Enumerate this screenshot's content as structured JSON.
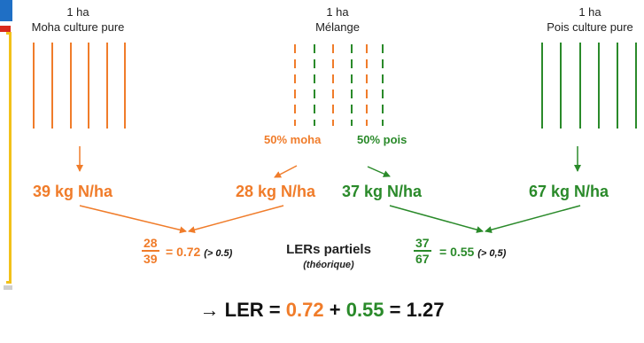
{
  "plots": {
    "moha": {
      "area": "1 ha",
      "name": "Moha culture pure"
    },
    "melange": {
      "area": "1 ha",
      "name": "Mélange",
      "share_moha": "50% moha",
      "share_pois": "50% pois"
    },
    "pois": {
      "area": "1 ha",
      "name": "Pois culture pure"
    }
  },
  "yields": {
    "moha_pure": "39 kg N/ha",
    "moha_mix": "28 kg N/ha",
    "pois_mix": "37 kg N/ha",
    "pois_pure": "67 kg N/ha"
  },
  "ler_partiel": {
    "title": "LERs partiels",
    "subtitle": "(théorique)",
    "moha": {
      "num": "28",
      "den": "39",
      "eq": "= 0.72",
      "note": "(> 0.5)"
    },
    "pois": {
      "num": "37",
      "den": "67",
      "eq": "= 0.55",
      "note": "(> 0,5)"
    }
  },
  "total": {
    "arrow": "→",
    "prefix": "LER =",
    "moha_value": "0.72",
    "plus": "+",
    "pois_value": "0.55",
    "result": "= 1.27"
  },
  "colors": {
    "moha": "#f07c2a",
    "pois": "#2a8a2a"
  }
}
